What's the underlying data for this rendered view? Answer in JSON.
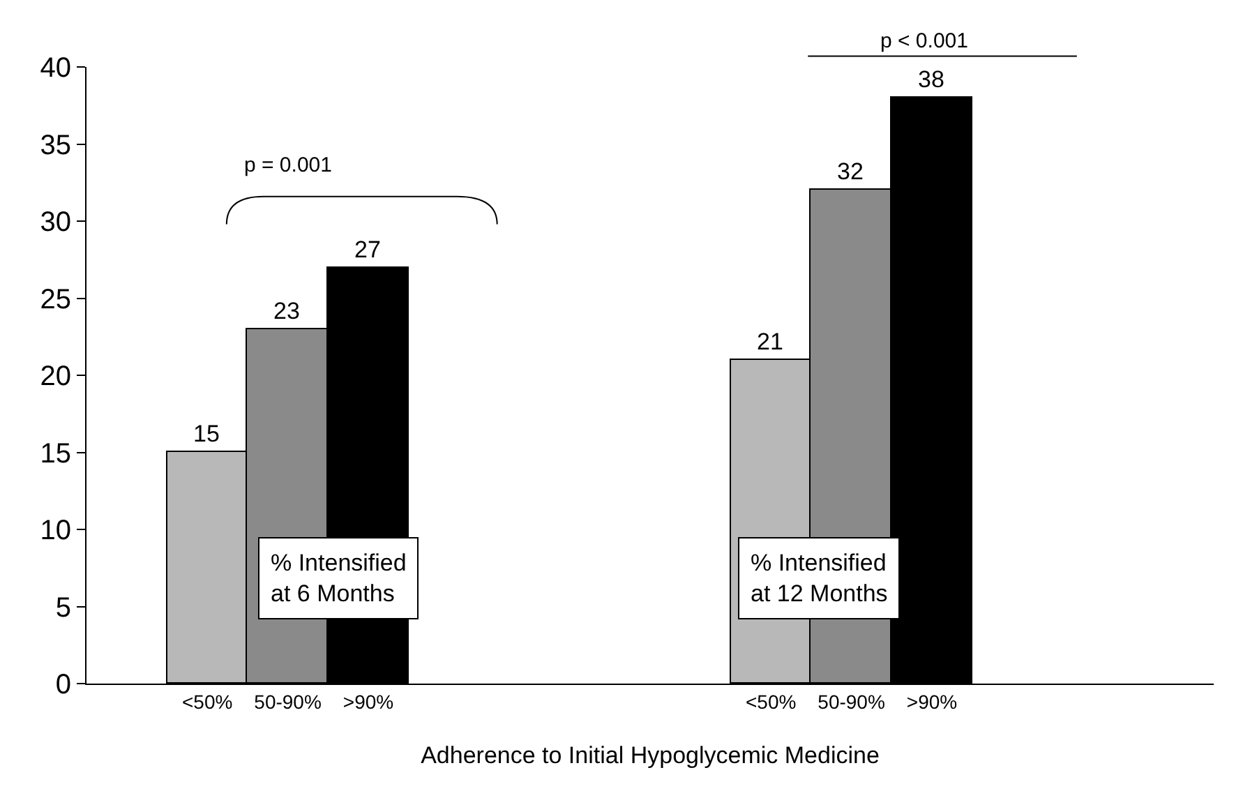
{
  "chart_data": {
    "type": "bar",
    "xlabel": "Adherence to Initial Hypoglycemic Medicine",
    "categories": [
      null,
      "<50%",
      "50-90%",
      ">90%",
      null,
      null,
      null,
      null,
      "<50%",
      "50-90%",
      ">90%",
      null,
      null,
      null
    ],
    "values": [
      null,
      15,
      23,
      27,
      null,
      null,
      null,
      null,
      21,
      32,
      38,
      null,
      null,
      null
    ],
    "colors": [
      "#ffffff",
      "#b8b8b8",
      "#8a8a8a",
      "#000000",
      "#ffffff",
      "#ffffff",
      "#ffffff",
      "#ffffff",
      "#b8b8b8",
      "#8a8a8a",
      "#000000",
      "#ffffff",
      "#ffffff",
      "#ffffff"
    ],
    "ylim": [
      0,
      40
    ],
    "yticks": [
      0,
      5,
      10,
      15,
      20,
      25,
      30,
      35,
      40
    ],
    "grid": false,
    "legend": false,
    "data_labels": true,
    "annotations": [
      "p = 0.001",
      "p < 0.001",
      "% Intensified\nat 6 Months",
      "% Intensified\nat 12 Months"
    ]
  }
}
